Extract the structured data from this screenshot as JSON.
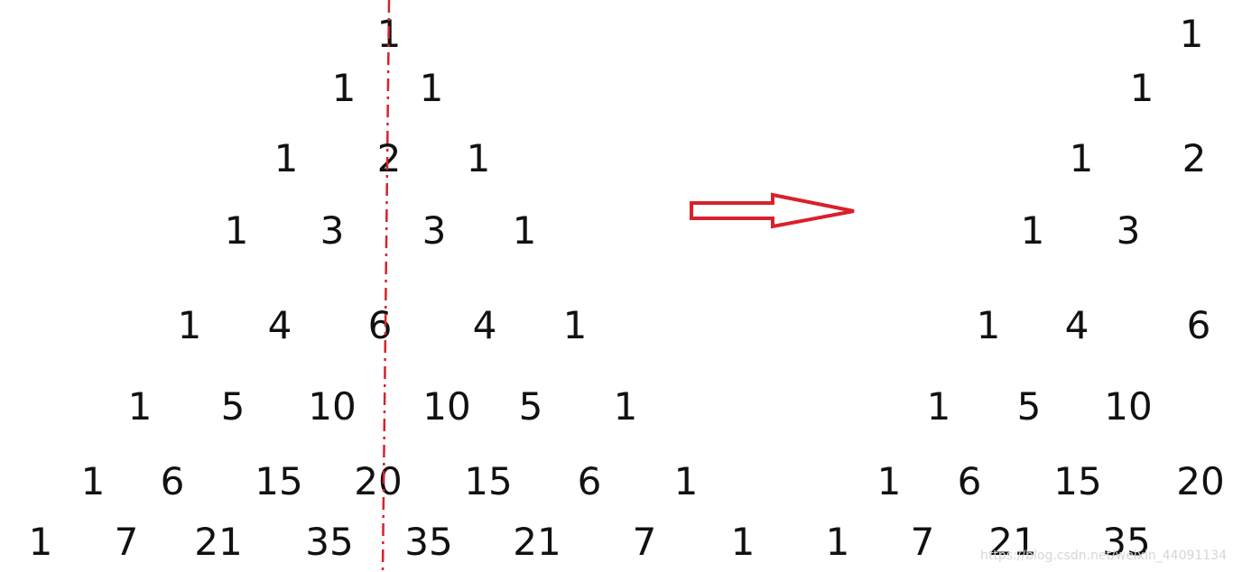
{
  "colors": {
    "ink": "#111111",
    "accent": "#d8212a",
    "watermark": "#d6d6d6"
  },
  "left_triangle": {
    "rows": [
      [
        "1"
      ],
      [
        "1",
        "1"
      ],
      [
        "1",
        "2",
        "1"
      ],
      [
        "1",
        "3",
        "3",
        "1"
      ],
      [
        "1",
        "4",
        "6",
        "4",
        "1"
      ],
      [
        "1",
        "5",
        "10",
        "10",
        "5",
        "1"
      ],
      [
        "1",
        "6",
        "15",
        "20",
        "15",
        "6",
        "1"
      ],
      [
        "1",
        "7",
        "21",
        "35",
        "35",
        "21",
        "7",
        "1"
      ]
    ]
  },
  "right_half": {
    "rows": [
      [
        "1"
      ],
      [
        "1"
      ],
      [
        "1",
        "2"
      ],
      [
        "1",
        "3"
      ],
      [
        "1",
        "4",
        "6"
      ],
      [
        "1",
        "5",
        "10"
      ],
      [
        "1",
        "6",
        "15",
        "20"
      ],
      [
        "1",
        "7",
        "21",
        "35"
      ]
    ]
  },
  "arrow": {
    "icon": "right-arrow-icon"
  },
  "watermark": {
    "text": "https://blog.csdn.net/weixin_44091134"
  }
}
